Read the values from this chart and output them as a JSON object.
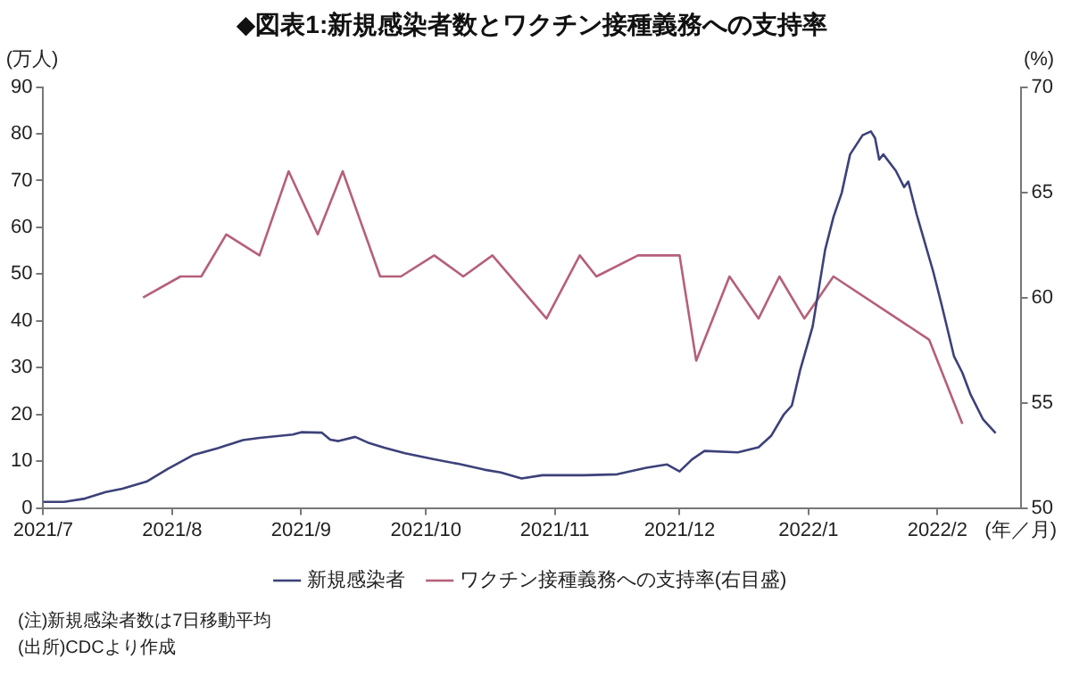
{
  "chart_data": {
    "type": "line",
    "title": "◆図表1:新規感染者数とワクチン接種義務への支持率",
    "ylabel": "(万人)",
    "y2label": "(%)",
    "xlabel": "(年／月)",
    "xlim": [
      "2021-07-01",
      "2022-02-21"
    ],
    "xticks": [
      {
        "value": "2021-07",
        "label": "2021/7"
      },
      {
        "value": "2021-08",
        "label": "2021/8"
      },
      {
        "value": "2021-09",
        "label": "2021/9"
      },
      {
        "value": "2021-10",
        "label": "2021/10"
      },
      {
        "value": "2021-11",
        "label": "2021/11"
      },
      {
        "value": "2021-12",
        "label": "2021/12"
      },
      {
        "value": "2022-01",
        "label": "2022/1"
      },
      {
        "value": "2022-02",
        "label": "2022/2"
      }
    ],
    "ylim": [
      0,
      90
    ],
    "yticks": [
      0,
      10,
      20,
      30,
      40,
      50,
      60,
      70,
      80,
      90
    ],
    "y2lim": [
      50,
      70
    ],
    "y2ticks": [
      50,
      55,
      60,
      65,
      70
    ],
    "legend": "bottom",
    "marker": "none",
    "series": [
      {
        "name": "新規感染者",
        "color": "#3d4179",
        "x": [
          "2021-07-01",
          "2021-07-06",
          "2021-07-11",
          "2021-07-16",
          "2021-07-20",
          "2021-07-26",
          "2021-07-31",
          "2021-08-06",
          "2021-08-12",
          "2021-08-18",
          "2021-08-22",
          "2021-08-30",
          "2021-09-01",
          "2021-09-06",
          "2021-09-08",
          "2021-09-10",
          "2021-09-14",
          "2021-09-17",
          "2021-09-21",
          "2021-09-26",
          "2021-10-03",
          "2021-10-09",
          "2021-10-15",
          "2021-10-19",
          "2021-10-24",
          "2021-10-29",
          "2021-11-08",
          "2021-11-16",
          "2021-11-23",
          "2021-11-28",
          "2021-12-01",
          "2021-12-04",
          "2021-12-07",
          "2021-12-15",
          "2021-12-20",
          "2021-12-23",
          "2021-12-26",
          "2021-12-28",
          "2021-12-30",
          "2022-01-02",
          "2022-01-05",
          "2022-01-07",
          "2022-01-09",
          "2022-01-11",
          "2022-01-14",
          "2022-01-16",
          "2022-01-17",
          "2022-01-18",
          "2022-01-19",
          "2022-01-22",
          "2022-01-24",
          "2022-01-25",
          "2022-01-27",
          "2022-01-31",
          "2022-02-02",
          "2022-02-05",
          "2022-02-07",
          "2022-02-09",
          "2022-02-12",
          "2022-02-15"
        ],
        "values": [
          1.3,
          1.3,
          2.0,
          3.4,
          4.1,
          5.7,
          8.4,
          11.3,
          12.8,
          14.5,
          15.0,
          15.7,
          16.2,
          16.1,
          14.6,
          14.3,
          15.2,
          14.0,
          12.9,
          11.7,
          10.4,
          9.4,
          8.2,
          7.6,
          6.3,
          7.0,
          7.0,
          7.2,
          8.6,
          9.3,
          7.8,
          10.4,
          12.2,
          11.9,
          13.0,
          15.4,
          19.9,
          21.9,
          29.5,
          38.8,
          55.2,
          62.2,
          67.4,
          75.6,
          79.7,
          80.5,
          79.1,
          74.5,
          75.6,
          72.1,
          68.6,
          69.8,
          62.8,
          50.5,
          43.5,
          32.4,
          28.9,
          24.2,
          18.9,
          16.0
        ]
      },
      {
        "name": "ワクチン接種義務への支持率(右目盛)",
        "color": "#b5607a",
        "axis": "y2",
        "x": [
          "2021-07-25",
          "2021-08-03",
          "2021-08-08",
          "2021-08-14",
          "2021-08-22",
          "2021-08-29",
          "2021-09-05",
          "2021-09-11",
          "2021-09-20",
          "2021-09-25",
          "2021-10-03",
          "2021-10-10",
          "2021-10-17",
          "2021-10-30",
          "2021-11-07",
          "2021-11-11",
          "2021-11-21",
          "2021-12-01",
          "2021-12-05",
          "2021-12-13",
          "2021-12-20",
          "2021-12-25",
          "2021-12-31",
          "2022-01-07",
          "2022-01-30",
          "2022-02-07"
        ],
        "values": [
          60,
          61,
          61,
          63,
          62,
          66,
          63,
          66,
          61,
          61,
          62,
          61,
          62,
          59,
          62,
          61,
          62,
          62,
          57,
          61,
          59,
          61,
          59,
          61,
          58,
          54
        ]
      }
    ],
    "annotations": [
      "(注)新規感染者数は7日移動平均",
      "(出所)CDCより作成"
    ]
  }
}
